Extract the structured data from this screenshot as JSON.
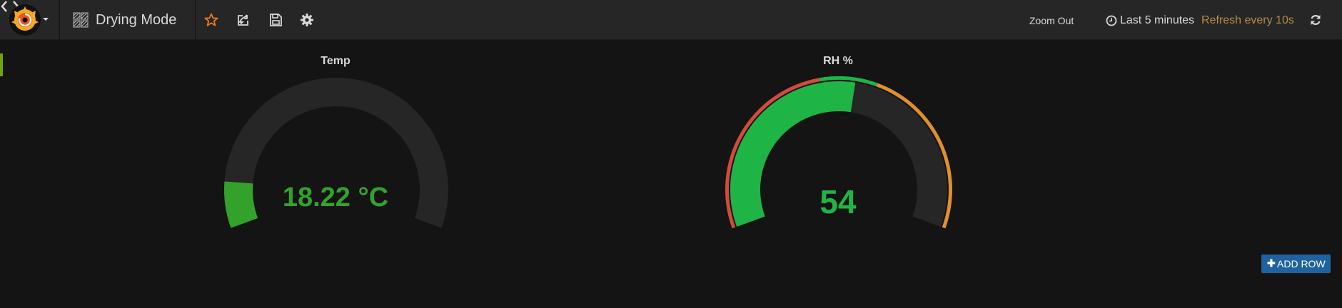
{
  "navbar": {
    "logo_icon": "grafana-logo-icon",
    "dashboard_icon": "dashboard-grid-icon",
    "dashboard_title": "Drying Mode",
    "actions": [
      {
        "name": "star",
        "icon": "star-icon",
        "color": "#eb7b18"
      },
      {
        "name": "share",
        "icon": "share-icon"
      },
      {
        "name": "save",
        "icon": "save-icon"
      },
      {
        "name": "settings",
        "icon": "gear-icon"
      }
    ],
    "zoom_label": "Zoom Out",
    "time_range_icon": "clock-icon",
    "time_range": "Last 5 minutes",
    "refresh_label": "Refresh every 10s",
    "refresh_label_color": "#b4894a",
    "refresh_icon": "refresh-icon"
  },
  "row": {
    "marker_color": "#6ea50b"
  },
  "panels": [
    {
      "title": "Temp",
      "value": 18.22,
      "value_text": "18.22 °C",
      "unit": "°C",
      "value_color": "#33a22d",
      "gauge_fill_fraction": 0.11,
      "show_threshold_markers": false
    },
    {
      "title": "RH %",
      "value": 54,
      "value_text": "54",
      "value_color": "#1fb446",
      "gauge_fill_fraction": 0.54,
      "show_threshold_markers": true,
      "threshold_colors": [
        "#d44a3a",
        "#1fb446",
        "#e0902b"
      ]
    }
  ],
  "add_row_label": "ADD ROW",
  "add_row_icon": "plus-icon",
  "colors": {
    "background": "#141414",
    "navbar": "#262626",
    "gauge_track": "#262626",
    "add_row_button": "#1f62a0"
  }
}
